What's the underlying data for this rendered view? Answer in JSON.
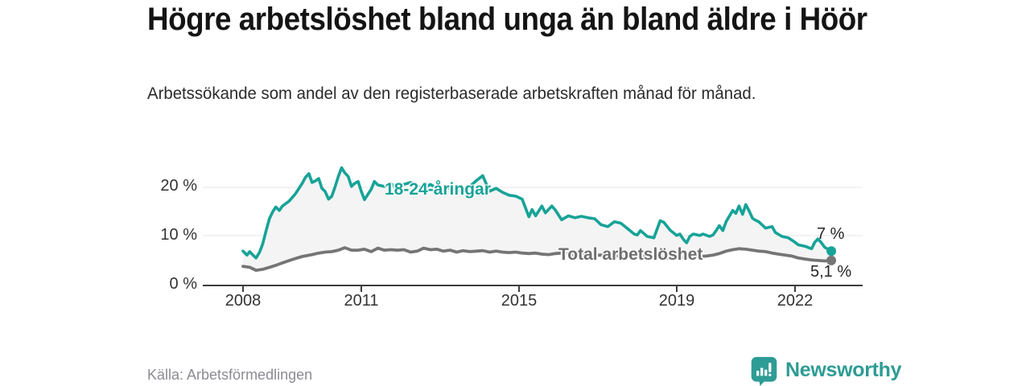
{
  "header": {
    "title": "Högre arbetslöshet bland unga än bland äldre i Höör",
    "subtitle": "Arbetssökande som andel av den registerbaserade arbetskraften månad för månad."
  },
  "footer": {
    "source": "Källa: Arbetsförmedlingen",
    "brand": "Newsworthy",
    "brand_color": "#2d9c94",
    "brand_icon": "newsworthy-speech-bubble-bar-chart-icon"
  },
  "colors": {
    "background": "#ffffff",
    "axis": "#3d3d3d",
    "gridline": "#e4e4e4",
    "tick_text": "#333333",
    "area_fill": "#f4f4f4",
    "end_label_text": "#262626"
  },
  "chart_data": {
    "type": "line",
    "title": "Högre arbetslöshet bland unga än bland äldre i Höör",
    "subtitle": "Arbetssökande som andel av den registerbaserade arbetskraften månad för månad.",
    "unit": "%",
    "grid": "horizontal-only",
    "legend": "inline-labels-on-lines",
    "x_axis": {
      "range": [
        2007.9,
        2023.3
      ],
      "ticks": [
        2008,
        2011,
        2015,
        2019,
        2022
      ],
      "tick_labels": [
        "2008",
        "2011",
        "2015",
        "2019",
        "2022"
      ]
    },
    "y_axis": {
      "range": [
        0,
        25
      ],
      "ticks": [
        0,
        10,
        20
      ],
      "tick_labels": [
        "0 %",
        "10 %",
        "20 %"
      ]
    },
    "area_between_series_fill": "#f4f4f4",
    "series": [
      {
        "name": "18-24-åringar",
        "inline_label": "18-24-åringar",
        "end_label": "7 %",
        "end_value": 7.0,
        "color": "#17a398",
        "points": [
          [
            2008.0,
            7.0
          ],
          [
            2008.1,
            6.2
          ],
          [
            2008.17,
            6.9
          ],
          [
            2008.25,
            6.2
          ],
          [
            2008.33,
            5.6
          ],
          [
            2008.42,
            6.8
          ],
          [
            2008.5,
            8.5
          ],
          [
            2008.58,
            11.0
          ],
          [
            2008.67,
            13.6
          ],
          [
            2008.75,
            15.0
          ],
          [
            2008.83,
            16.0
          ],
          [
            2008.92,
            15.3
          ],
          [
            2009.0,
            16.2
          ],
          [
            2009.17,
            17.2
          ],
          [
            2009.33,
            18.7
          ],
          [
            2009.5,
            20.8
          ],
          [
            2009.58,
            22.0
          ],
          [
            2009.67,
            22.8
          ],
          [
            2009.75,
            21.0
          ],
          [
            2009.83,
            21.3
          ],
          [
            2009.92,
            21.8
          ],
          [
            2010.0,
            19.8
          ],
          [
            2010.08,
            19.2
          ],
          [
            2010.17,
            17.6
          ],
          [
            2010.25,
            18.2
          ],
          [
            2010.33,
            20.0
          ],
          [
            2010.42,
            22.3
          ],
          [
            2010.5,
            24.0
          ],
          [
            2010.58,
            23.0
          ],
          [
            2010.67,
            22.2
          ],
          [
            2010.75,
            20.2
          ],
          [
            2010.83,
            20.8
          ],
          [
            2010.92,
            21.2
          ],
          [
            2011.0,
            19.2
          ],
          [
            2011.08,
            17.5
          ],
          [
            2011.25,
            19.6
          ],
          [
            2011.33,
            21.2
          ],
          [
            2011.42,
            20.5
          ],
          [
            2011.58,
            20.2
          ],
          [
            2011.75,
            20.8
          ],
          [
            2011.92,
            19.6
          ],
          [
            2012.08,
            20.6
          ],
          [
            2012.25,
            21.0
          ],
          [
            2012.42,
            20.2
          ],
          [
            2012.58,
            19.8
          ],
          [
            2012.75,
            20.6
          ],
          [
            2012.92,
            19.8
          ],
          [
            2013.08,
            19.4
          ],
          [
            2013.25,
            20.0
          ],
          [
            2013.42,
            19.2
          ],
          [
            2013.58,
            19.6
          ],
          [
            2013.75,
            20.2
          ],
          [
            2013.92,
            21.4
          ],
          [
            2014.08,
            22.4
          ],
          [
            2014.25,
            19.2
          ],
          [
            2014.42,
            19.8
          ],
          [
            2014.58,
            19.0
          ],
          [
            2014.75,
            18.4
          ],
          [
            2014.92,
            18.2
          ],
          [
            2015.08,
            17.6
          ],
          [
            2015.25,
            14.0
          ],
          [
            2015.33,
            15.5
          ],
          [
            2015.42,
            14.2
          ],
          [
            2015.58,
            16.2
          ],
          [
            2015.67,
            14.8
          ],
          [
            2015.83,
            16.2
          ],
          [
            2015.92,
            15.4
          ],
          [
            2016.08,
            13.4
          ],
          [
            2016.25,
            14.2
          ],
          [
            2016.42,
            13.8
          ],
          [
            2016.58,
            14.1
          ],
          [
            2016.75,
            13.8
          ],
          [
            2016.92,
            13.6
          ],
          [
            2017.08,
            12.4
          ],
          [
            2017.25,
            12.0
          ],
          [
            2017.42,
            13.0
          ],
          [
            2017.58,
            12.7
          ],
          [
            2017.75,
            11.6
          ],
          [
            2017.92,
            10.5
          ],
          [
            2018.0,
            10.3
          ],
          [
            2018.08,
            11.2
          ],
          [
            2018.25,
            10.0
          ],
          [
            2018.42,
            9.7
          ],
          [
            2018.58,
            13.2
          ],
          [
            2018.67,
            12.9
          ],
          [
            2018.83,
            11.3
          ],
          [
            2019.0,
            10.2
          ],
          [
            2019.08,
            10.5
          ],
          [
            2019.17,
            9.4
          ],
          [
            2019.25,
            8.7
          ],
          [
            2019.33,
            10.0
          ],
          [
            2019.42,
            10.5
          ],
          [
            2019.58,
            10.2
          ],
          [
            2019.67,
            10.5
          ],
          [
            2019.83,
            10.0
          ],
          [
            2019.92,
            10.3
          ],
          [
            2020.0,
            11.2
          ],
          [
            2020.08,
            12.2
          ],
          [
            2020.17,
            11.2
          ],
          [
            2020.25,
            13.0
          ],
          [
            2020.42,
            15.3
          ],
          [
            2020.5,
            14.7
          ],
          [
            2020.58,
            16.2
          ],
          [
            2020.67,
            14.5
          ],
          [
            2020.75,
            16.5
          ],
          [
            2020.83,
            15.3
          ],
          [
            2020.92,
            13.7
          ],
          [
            2021.0,
            13.3
          ],
          [
            2021.08,
            13.0
          ],
          [
            2021.25,
            11.7
          ],
          [
            2021.42,
            12.0
          ],
          [
            2021.5,
            10.8
          ],
          [
            2021.67,
            10.0
          ],
          [
            2021.83,
            9.7
          ],
          [
            2022.0,
            8.8
          ],
          [
            2022.08,
            8.3
          ],
          [
            2022.25,
            8.0
          ],
          [
            2022.42,
            7.5
          ],
          [
            2022.5,
            8.8
          ],
          [
            2022.58,
            9.5
          ],
          [
            2022.67,
            8.7
          ],
          [
            2022.75,
            7.8
          ],
          [
            2022.92,
            7.0
          ]
        ]
      },
      {
        "name": "Total arbetslöshet",
        "inline_label": "Total arbetslöshet",
        "end_label": "5,1 %",
        "end_value": 5.1,
        "color": "#757575",
        "label_color": "#6e6e6e",
        "points": [
          [
            2008.0,
            3.9
          ],
          [
            2008.17,
            3.7
          ],
          [
            2008.33,
            3.1
          ],
          [
            2008.5,
            3.3
          ],
          [
            2008.67,
            3.7
          ],
          [
            2008.83,
            4.1
          ],
          [
            2009.0,
            4.6
          ],
          [
            2009.25,
            5.3
          ],
          [
            2009.5,
            5.9
          ],
          [
            2009.75,
            6.3
          ],
          [
            2009.92,
            6.6
          ],
          [
            2010.08,
            6.8
          ],
          [
            2010.25,
            6.9
          ],
          [
            2010.42,
            7.2
          ],
          [
            2010.58,
            7.7
          ],
          [
            2010.75,
            7.2
          ],
          [
            2010.92,
            7.2
          ],
          [
            2011.08,
            7.4
          ],
          [
            2011.25,
            6.9
          ],
          [
            2011.42,
            7.6
          ],
          [
            2011.58,
            7.2
          ],
          [
            2011.75,
            7.3
          ],
          [
            2011.92,
            7.2
          ],
          [
            2012.08,
            7.3
          ],
          [
            2012.25,
            6.8
          ],
          [
            2012.42,
            7.0
          ],
          [
            2012.58,
            7.6
          ],
          [
            2012.75,
            7.3
          ],
          [
            2012.92,
            7.4
          ],
          [
            2013.08,
            7.0
          ],
          [
            2013.25,
            7.2
          ],
          [
            2013.42,
            6.8
          ],
          [
            2013.58,
            7.1
          ],
          [
            2013.75,
            6.9
          ],
          [
            2013.92,
            7.0
          ],
          [
            2014.08,
            7.1
          ],
          [
            2014.25,
            6.8
          ],
          [
            2014.42,
            7.0
          ],
          [
            2014.58,
            6.8
          ],
          [
            2014.75,
            6.7
          ],
          [
            2014.92,
            6.8
          ],
          [
            2015.08,
            6.6
          ],
          [
            2015.25,
            6.5
          ],
          [
            2015.42,
            6.6
          ],
          [
            2015.58,
            6.4
          ],
          [
            2015.75,
            6.3
          ],
          [
            2015.92,
            6.5
          ],
          [
            2016.08,
            6.6
          ],
          [
            2016.25,
            6.4
          ],
          [
            2016.42,
            6.2
          ],
          [
            2016.58,
            6.3
          ],
          [
            2016.75,
            6.2
          ],
          [
            2016.92,
            6.1
          ],
          [
            2017.08,
            6.2
          ],
          [
            2017.25,
            6.0
          ],
          [
            2017.42,
            6.1
          ],
          [
            2017.58,
            5.9
          ],
          [
            2017.75,
            5.8
          ],
          [
            2017.92,
            5.9
          ],
          [
            2018.08,
            6.0
          ],
          [
            2018.25,
            5.7
          ],
          [
            2018.42,
            5.9
          ],
          [
            2018.58,
            5.8
          ],
          [
            2018.75,
            5.6
          ],
          [
            2018.92,
            5.7
          ],
          [
            2019.08,
            5.8
          ],
          [
            2019.25,
            5.6
          ],
          [
            2019.42,
            5.8
          ],
          [
            2019.58,
            5.9
          ],
          [
            2019.75,
            6.0
          ],
          [
            2019.92,
            6.2
          ],
          [
            2020.08,
            6.5
          ],
          [
            2020.25,
            7.0
          ],
          [
            2020.42,
            7.3
          ],
          [
            2020.58,
            7.5
          ],
          [
            2020.75,
            7.4
          ],
          [
            2020.92,
            7.2
          ],
          [
            2021.08,
            7.0
          ],
          [
            2021.25,
            6.9
          ],
          [
            2021.42,
            6.6
          ],
          [
            2021.58,
            6.4
          ],
          [
            2021.75,
            6.2
          ],
          [
            2021.92,
            6.0
          ],
          [
            2022.08,
            5.6
          ],
          [
            2022.25,
            5.4
          ],
          [
            2022.42,
            5.2
          ],
          [
            2022.58,
            5.1
          ],
          [
            2022.75,
            5.0
          ],
          [
            2022.92,
            5.1
          ]
        ]
      }
    ]
  }
}
